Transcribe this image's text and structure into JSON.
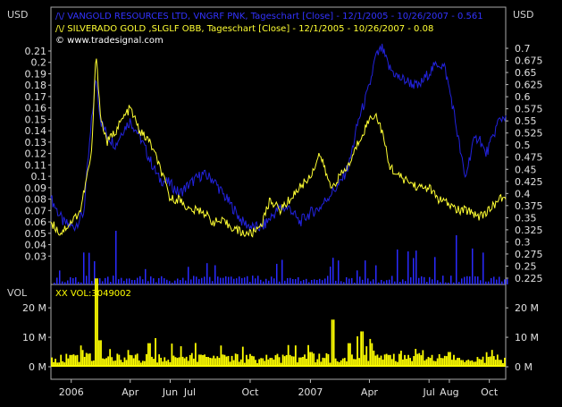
{
  "chart_data": [
    {
      "type": "line",
      "title": "",
      "axes": {
        "left": {
          "label": "USD",
          "range": [
            0.02,
            0.21
          ],
          "ticks": [
            0.21,
            0.2,
            0.19,
            0.18,
            0.17,
            0.16,
            0.15,
            0.14,
            0.13,
            0.12,
            0.11,
            0.1,
            0.09,
            0.08,
            0.07,
            0.06,
            0.05,
            0.04,
            0.03
          ]
        },
        "right": {
          "label": "USD",
          "range": [
            0.2125,
            0.7125
          ],
          "ticks": [
            0.7,
            0.675,
            0.65,
            0.625,
            0.6,
            0.575,
            0.55,
            0.525,
            0.5,
            0.475,
            0.45,
            0.425,
            0.4,
            0.375,
            0.35,
            0.325,
            0.3,
            0.275,
            0.25,
            0.225
          ]
        },
        "x_ticks": [
          "2006",
          "Apr",
          "Jun",
          "Jul",
          "Oct",
          "2007",
          "Apr",
          "Jul",
          "Aug",
          "Oct"
        ],
        "x_tick_dates": [
          "2006-01-01",
          "2006-04-01",
          "2006-06-01",
          "2006-07-01",
          "2006-10-01",
          "2007-01-01",
          "2007-04-01",
          "2007-07-01",
          "2007-08-01",
          "2007-10-01"
        ],
        "x_range": [
          "2005-12-01",
          "2007-10-26"
        ]
      },
      "grid": false,
      "legend_position": "top-left",
      "series": [
        {
          "name": "/\\/ VANGOLD RESOURCES LTD, VNGRF PNK, Tageschart [Close] - 12/1/2005 - 10/26/2007 - 0.561",
          "axis": "right",
          "color": "#2222dd",
          "x": [
            "2005-12-01",
            "2005-12-20",
            "2006-01-05",
            "2006-01-20",
            "2006-02-01",
            "2006-02-08",
            "2006-02-15",
            "2006-02-25",
            "2006-03-10",
            "2006-03-20",
            "2006-04-01",
            "2006-04-15",
            "2006-05-01",
            "2006-05-15",
            "2006-06-01",
            "2006-06-15",
            "2006-07-01",
            "2006-07-20",
            "2006-08-05",
            "2006-08-20",
            "2006-09-05",
            "2006-09-20",
            "2006-10-05",
            "2006-10-20",
            "2006-11-01",
            "2006-11-15",
            "2006-12-01",
            "2006-12-15",
            "2007-01-01",
            "2007-01-15",
            "2007-02-01",
            "2007-02-15",
            "2007-03-01",
            "2007-03-15",
            "2007-04-01",
            "2007-04-10",
            "2007-04-20",
            "2007-05-01",
            "2007-05-15",
            "2007-06-01",
            "2007-06-15",
            "2007-07-01",
            "2007-07-15",
            "2007-07-25",
            "2007-08-05",
            "2007-08-15",
            "2007-08-25",
            "2007-09-05",
            "2007-09-15",
            "2007-09-25",
            "2007-10-05",
            "2007-10-15",
            "2007-10-26"
          ],
          "y": [
            0.39,
            0.34,
            0.33,
            0.36,
            0.55,
            0.64,
            0.55,
            0.52,
            0.5,
            0.53,
            0.55,
            0.52,
            0.47,
            0.43,
            0.42,
            0.4,
            0.42,
            0.44,
            0.43,
            0.4,
            0.37,
            0.34,
            0.33,
            0.33,
            0.35,
            0.37,
            0.37,
            0.34,
            0.36,
            0.37,
            0.4,
            0.42,
            0.46,
            0.55,
            0.62,
            0.68,
            0.7,
            0.66,
            0.64,
            0.63,
            0.62,
            0.65,
            0.67,
            0.66,
            0.59,
            0.51,
            0.43,
            0.5,
            0.52,
            0.48,
            0.51,
            0.55,
            0.561
          ]
        },
        {
          "name": "/\\/ SILVERADO GOLD ,SLGLF OBB, Tageschart [Close] - 12/1/2005 - 10/26/2007 - 0.08",
          "axis": "left",
          "color": "#ffff33",
          "x": [
            "2005-12-01",
            "2005-12-15",
            "2006-01-01",
            "2006-01-15",
            "2006-02-01",
            "2006-02-08",
            "2006-02-15",
            "2006-02-25",
            "2006-03-10",
            "2006-03-20",
            "2006-04-01",
            "2006-04-15",
            "2006-05-01",
            "2006-05-15",
            "2006-06-01",
            "2006-06-15",
            "2006-07-01",
            "2006-07-20",
            "2006-08-05",
            "2006-08-20",
            "2006-09-05",
            "2006-09-20",
            "2006-10-05",
            "2006-10-20",
            "2006-11-01",
            "2006-11-15",
            "2006-12-01",
            "2006-12-15",
            "2007-01-01",
            "2007-01-15",
            "2007-02-01",
            "2007-02-15",
            "2007-03-01",
            "2007-03-15",
            "2007-04-01",
            "2007-04-10",
            "2007-04-20",
            "2007-05-01",
            "2007-05-15",
            "2007-06-01",
            "2007-06-15",
            "2007-07-01",
            "2007-07-15",
            "2007-08-01",
            "2007-08-15",
            "2007-09-01",
            "2007-09-15",
            "2007-10-01",
            "2007-10-15",
            "2007-10-26"
          ],
          "y": [
            0.06,
            0.05,
            0.06,
            0.07,
            0.12,
            0.21,
            0.15,
            0.13,
            0.14,
            0.15,
            0.16,
            0.14,
            0.13,
            0.11,
            0.08,
            0.08,
            0.07,
            0.07,
            0.06,
            0.06,
            0.055,
            0.05,
            0.05,
            0.06,
            0.08,
            0.07,
            0.08,
            0.09,
            0.1,
            0.12,
            0.09,
            0.1,
            0.11,
            0.13,
            0.15,
            0.155,
            0.14,
            0.11,
            0.1,
            0.095,
            0.09,
            0.09,
            0.08,
            0.075,
            0.07,
            0.07,
            0.065,
            0.07,
            0.08,
            0.08
          ]
        }
      ]
    },
    {
      "type": "bar",
      "title": "",
      "axes": {
        "left": {
          "label": "VOL"
        },
        "right": {
          "label": ""
        }
      },
      "yticks_left": [
        "0 M",
        "10 M",
        "20 M"
      ],
      "yticks_right": [
        "0 M",
        "10 M",
        "20 M"
      ],
      "y_range": [
        0,
        30000000
      ],
      "series": [
        {
          "name": "XX VOL:3049002",
          "color": "#ffff00"
        }
      ],
      "x": [
        "2005-12-01",
        "2006-01-01",
        "2006-02-08",
        "2006-02-15",
        "2006-03-01",
        "2006-04-01",
        "2006-05-01",
        "2006-07-01",
        "2006-10-01",
        "2006-11-01",
        "2006-12-01",
        "2007-01-01",
        "2007-02-05",
        "2007-03-01",
        "2007-03-20",
        "2007-04-05",
        "2007-05-01",
        "2007-06-01",
        "2007-07-01",
        "2007-08-01",
        "2007-09-01",
        "2007-10-01",
        "2007-10-26"
      ],
      "values": [
        3000000,
        4000000,
        30000000,
        9000000,
        6000000,
        4000000,
        8000000,
        2000000,
        3000000,
        3000000,
        4000000,
        5000000,
        16000000,
        8000000,
        12000000,
        8000000,
        4000000,
        3000000,
        3000000,
        5000000,
        2000000,
        3000000,
        3049002
      ]
    }
  ],
  "text": {
    "watermark": "© www.tradesignal.com"
  }
}
